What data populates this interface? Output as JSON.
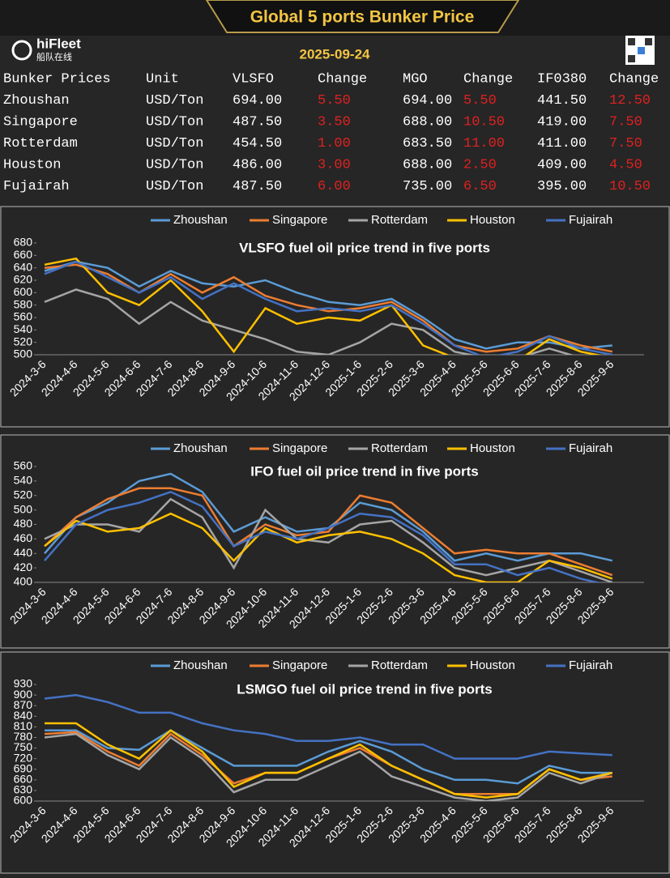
{
  "header": {
    "title": "Global 5 ports  Bunker Price",
    "logo": "hiFleet",
    "logo_sub": "船队在线",
    "date": "2025-09-24"
  },
  "table": {
    "header": [
      "Bunker Prices",
      "Unit",
      "VLSFO",
      "Change",
      "MGO",
      "Change",
      "IF0380",
      "Change"
    ],
    "rows": [
      [
        "Zhoushan",
        "USD/Ton",
        "694.00",
        "5.50",
        "694.00",
        "5.50",
        "441.50",
        "12.50"
      ],
      [
        "Singapore",
        "USD/Ton",
        "487.50",
        "3.50",
        "688.00",
        "10.50",
        "419.00",
        "7.50"
      ],
      [
        "Rotterdam",
        "USD/Ton",
        "454.50",
        "1.00",
        "683.50",
        "11.00",
        "411.00",
        "7.50"
      ],
      [
        "Houston",
        "USD/Ton",
        "486.00",
        "3.00",
        "688.00",
        "2.50",
        "409.00",
        "4.50"
      ],
      [
        "Fujairah",
        "USD/Ton",
        "487.50",
        "6.00",
        "735.00",
        "6.50",
        "395.00",
        "10.50"
      ]
    ]
  },
  "chart_data": [
    {
      "type": "line",
      "title": "VLSFO fuel oil price trend in five ports",
      "categories": [
        "2024-3-6",
        "2024-4-6",
        "2024-5-6",
        "2024-6-6",
        "2024-7-6",
        "2024-8-6",
        "2024-9-6",
        "2024-10-6",
        "2024-11-6",
        "2024-12-6",
        "2025-1-6",
        "2025-2-6",
        "2025-3-6",
        "2025-4-6",
        "2025-5-6",
        "2025-6-6",
        "2025-7-6",
        "2025-8-6",
        "2025-9-6"
      ],
      "ylim": [
        500,
        680
      ],
      "yticks": [
        500,
        520,
        540,
        560,
        580,
        600,
        620,
        640,
        660,
        680
      ],
      "series": [
        {
          "name": "Zhoushan",
          "color": "#5b9bd5",
          "values": [
            635,
            650,
            640,
            610,
            635,
            615,
            610,
            620,
            600,
            585,
            580,
            590,
            560,
            525,
            510,
            520,
            520,
            510,
            515
          ]
        },
        {
          "name": "Singapore",
          "color": "#ed7d31",
          "values": [
            640,
            645,
            630,
            600,
            630,
            600,
            625,
            595,
            580,
            570,
            575,
            585,
            555,
            515,
            505,
            510,
            530,
            515,
            505
          ]
        },
        {
          "name": "Rotterdam",
          "color": "#a5a5a5",
          "values": [
            585,
            605,
            590,
            550,
            585,
            555,
            540,
            525,
            505,
            500,
            520,
            550,
            540,
            505,
            495,
            495,
            510,
            495,
            490
          ]
        },
        {
          "name": "Houston",
          "color": "#ffc000",
          "values": [
            645,
            655,
            600,
            580,
            620,
            570,
            505,
            575,
            550,
            560,
            555,
            580,
            515,
            495,
            490,
            490,
            525,
            505,
            495
          ]
        },
        {
          "name": "Fujairah",
          "color": "#4472c4",
          "values": [
            630,
            650,
            625,
            600,
            625,
            590,
            615,
            590,
            570,
            575,
            570,
            580,
            550,
            515,
            495,
            505,
            530,
            510,
            500
          ]
        }
      ]
    },
    {
      "type": "line",
      "title": "IFO fuel oil price trend in five ports",
      "categories": [
        "2024-3-6",
        "2024-4-6",
        "2024-5-6",
        "2024-6-6",
        "2024-7-6",
        "2024-8-6",
        "2024-9-6",
        "2024-10-6",
        "2024-11-6",
        "2024-12-6",
        "2025-1-6",
        "2025-2-6",
        "2025-3-6",
        "2025-4-6",
        "2025-5-6",
        "2025-6-6",
        "2025-7-6",
        "2025-8-6",
        "2025-9-6"
      ],
      "ylim": [
        400,
        560
      ],
      "yticks": [
        400,
        420,
        440,
        460,
        480,
        500,
        520,
        540,
        560
      ],
      "series": [
        {
          "name": "Zhoushan",
          "color": "#5b9bd5",
          "values": [
            440,
            490,
            510,
            540,
            550,
            525,
            470,
            490,
            470,
            475,
            510,
            500,
            470,
            430,
            440,
            430,
            440,
            440,
            430
          ]
        },
        {
          "name": "Singapore",
          "color": "#ed7d31",
          "values": [
            450,
            490,
            515,
            530,
            530,
            520,
            450,
            480,
            465,
            470,
            520,
            510,
            475,
            440,
            445,
            440,
            440,
            425,
            410
          ]
        },
        {
          "name": "Rotterdam",
          "color": "#a5a5a5",
          "values": [
            460,
            480,
            480,
            470,
            515,
            490,
            420,
            500,
            460,
            455,
            480,
            485,
            455,
            420,
            410,
            420,
            430,
            415,
            400
          ]
        },
        {
          "name": "Houston",
          "color": "#ffc000",
          "values": [
            450,
            485,
            470,
            475,
            495,
            475,
            430,
            475,
            455,
            465,
            470,
            460,
            440,
            410,
            400,
            400,
            430,
            420,
            405
          ]
        },
        {
          "name": "Fujairah",
          "color": "#4472c4",
          "values": [
            430,
            480,
            500,
            510,
            525,
            505,
            450,
            470,
            460,
            475,
            495,
            490,
            465,
            425,
            425,
            410,
            420,
            405,
            395
          ]
        }
      ]
    },
    {
      "type": "line",
      "title": "LSMGO fuel oil price trend in five ports",
      "categories": [
        "2024-3-6",
        "2024-4-6",
        "2024-5-6",
        "2024-6-6",
        "2024-7-6",
        "2024-8-6",
        "2024-9-6",
        "2024-10-6",
        "2024-11-6",
        "2024-12-6",
        "2025-1-6",
        "2025-2-6",
        "2025-3-6",
        "2025-4-6",
        "2025-5-6",
        "2025-6-6",
        "2025-7-6",
        "2025-8-6",
        "2025-9-6"
      ],
      "ylim": [
        600,
        930
      ],
      "yticks": [
        600,
        630,
        660,
        690,
        720,
        750,
        780,
        810,
        840,
        870,
        900,
        930
      ],
      "series": [
        {
          "name": "Zhoushan",
          "color": "#5b9bd5",
          "values": [
            800,
            800,
            750,
            745,
            800,
            750,
            700,
            700,
            700,
            740,
            770,
            740,
            690,
            660,
            660,
            650,
            700,
            680,
            680
          ]
        },
        {
          "name": "Singapore",
          "color": "#ed7d31",
          "values": [
            790,
            795,
            740,
            700,
            790,
            730,
            650,
            680,
            680,
            720,
            750,
            700,
            660,
            620,
            620,
            620,
            690,
            660,
            670
          ]
        },
        {
          "name": "Rotterdam",
          "color": "#a5a5a5",
          "values": [
            780,
            790,
            730,
            690,
            780,
            720,
            625,
            660,
            660,
            700,
            740,
            670,
            640,
            610,
            600,
            610,
            680,
            650,
            680
          ]
        },
        {
          "name": "Houston",
          "color": "#ffc000",
          "values": [
            820,
            820,
            760,
            720,
            800,
            740,
            640,
            680,
            680,
            720,
            760,
            700,
            660,
            620,
            610,
            620,
            690,
            660,
            680
          ]
        },
        {
          "name": "Fujairah",
          "color": "#4472c4",
          "values": [
            890,
            900,
            880,
            850,
            850,
            820,
            800,
            790,
            770,
            770,
            780,
            760,
            760,
            720,
            720,
            720,
            740,
            735,
            730
          ]
        }
      ]
    }
  ]
}
